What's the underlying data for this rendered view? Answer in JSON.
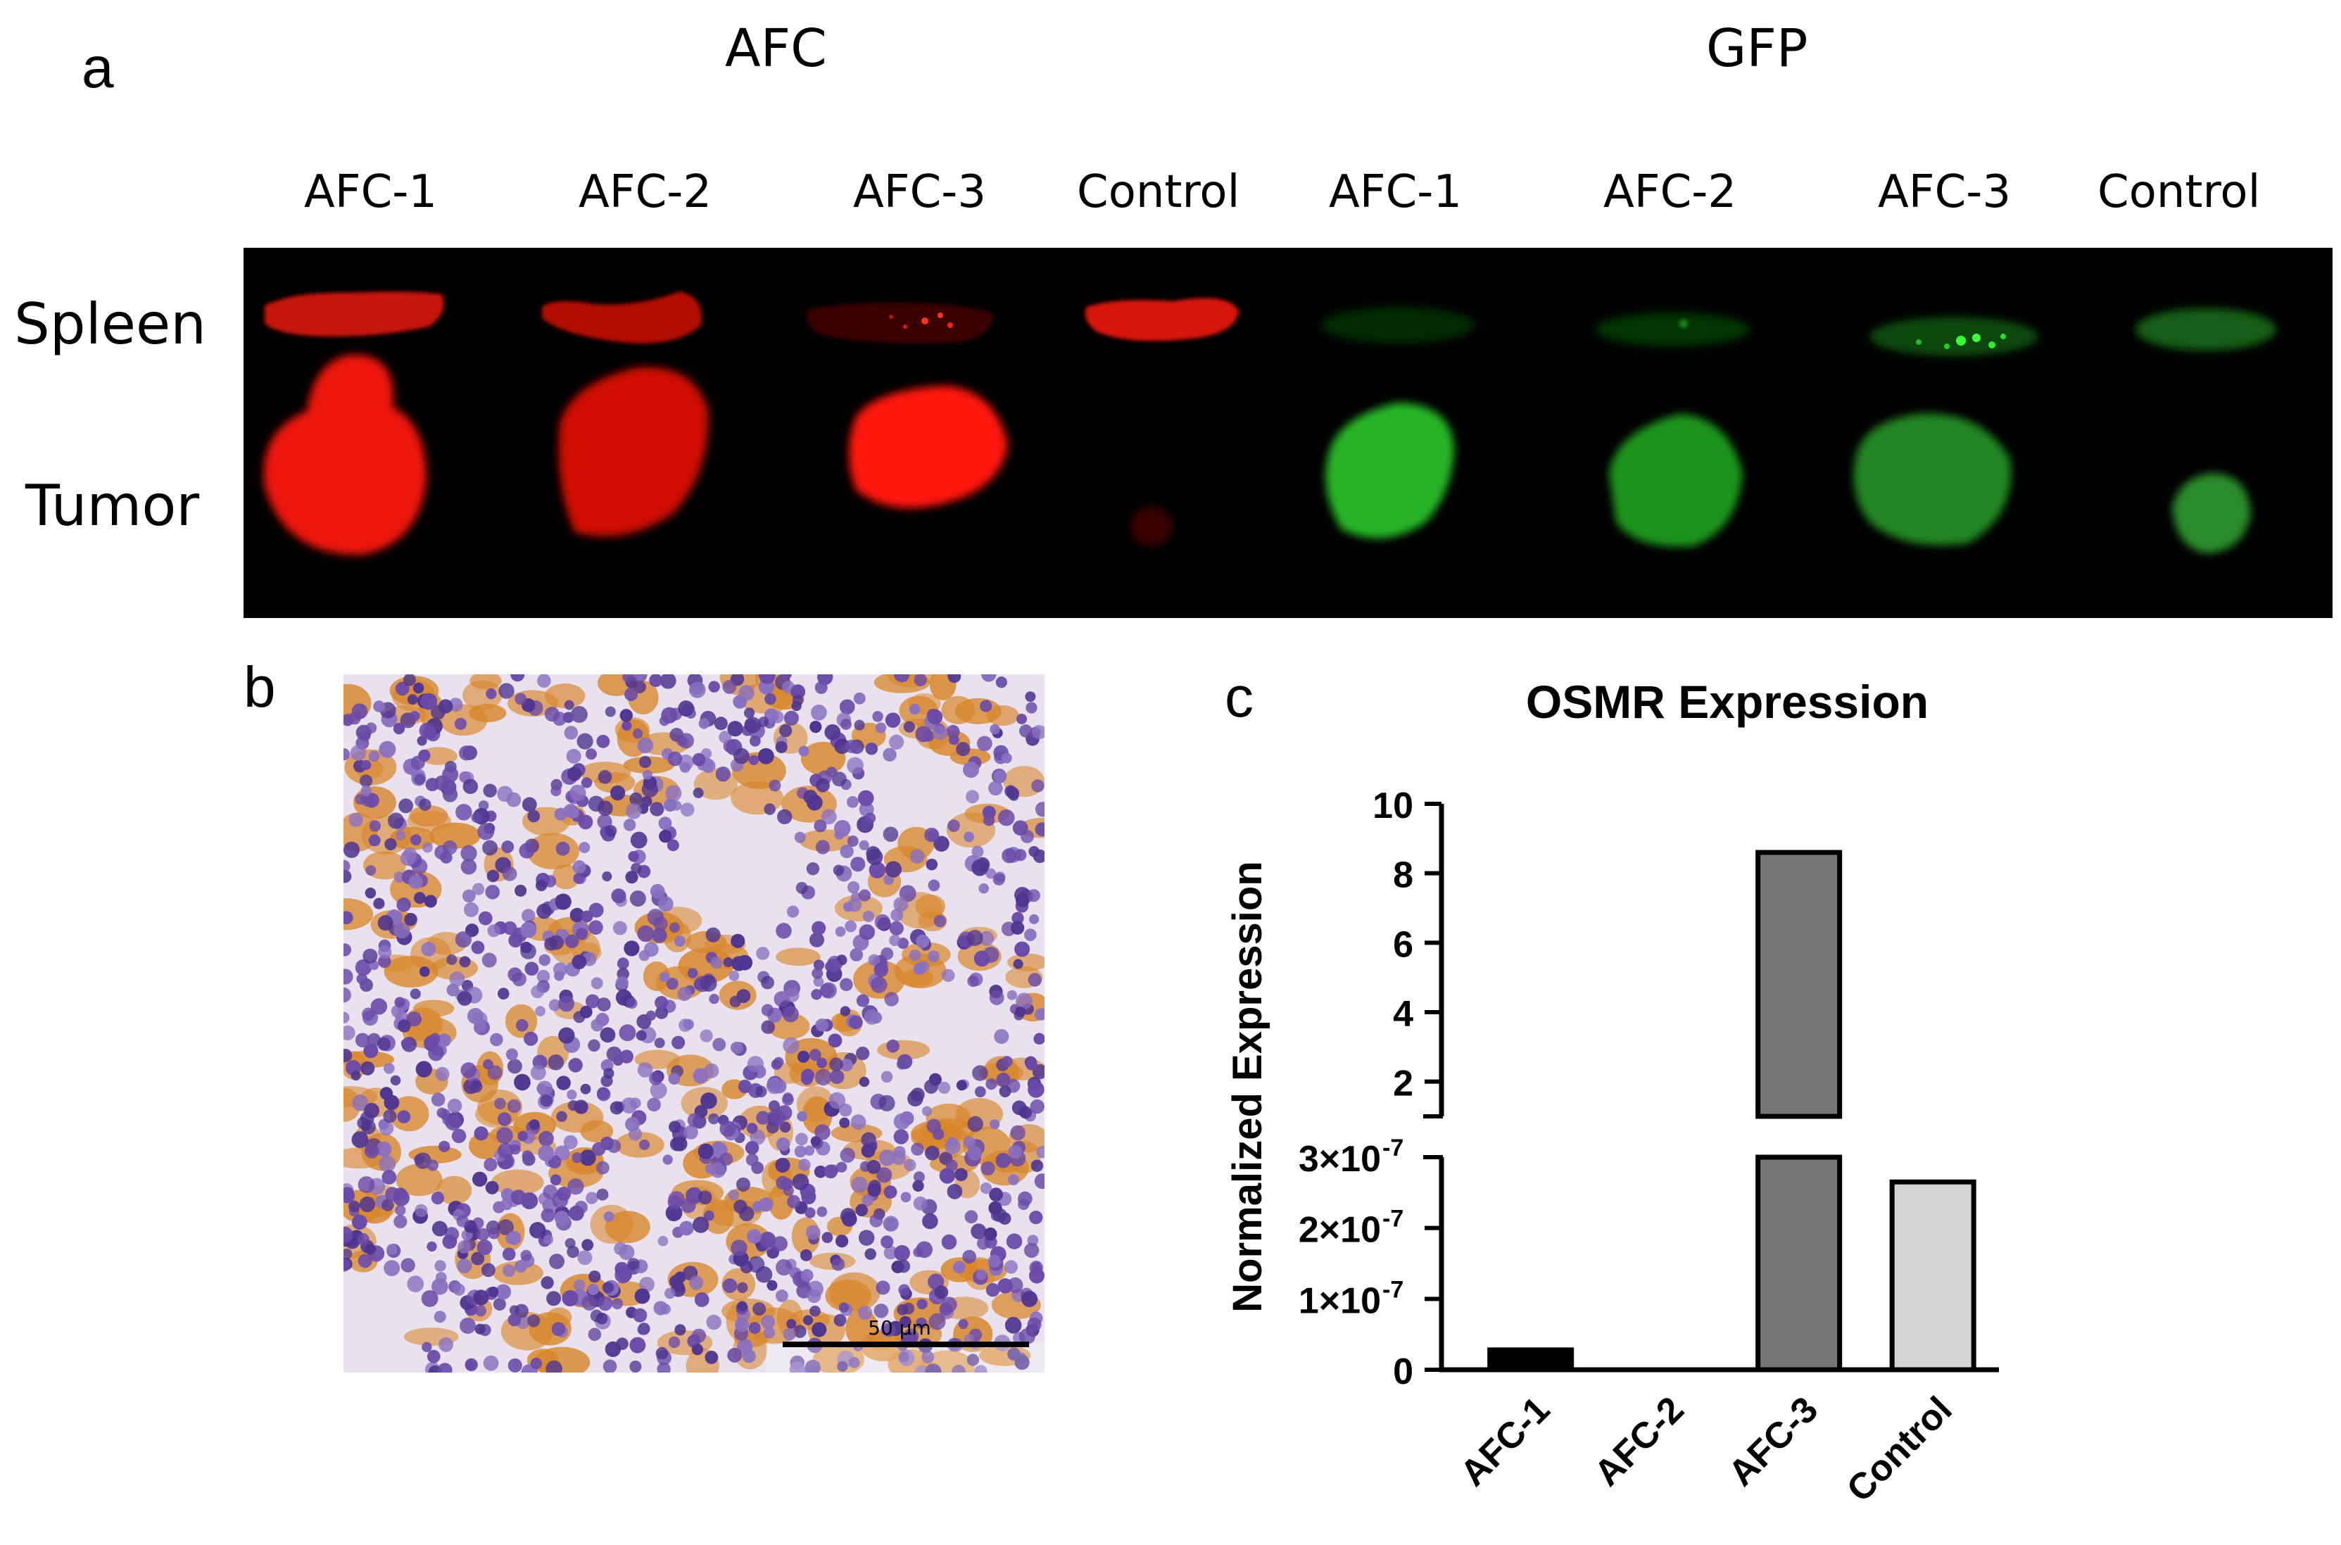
{
  "panel_a": {
    "letter": "a",
    "group_titles": [
      "AFC",
      "GFP"
    ],
    "column_labels": [
      "AFC-1",
      "AFC-2",
      "AFC-3",
      "Control",
      "AFC-1",
      "AFC-2",
      "AFC-3",
      "Control"
    ],
    "row_labels": [
      "Spleen",
      "Tumor"
    ],
    "colors": {
      "afc_channel": "#ff1a0a",
      "gfp_channel": "#22cc22",
      "background": "#000000"
    }
  },
  "panel_b": {
    "letter": "b",
    "scale_bar_label": "50 µm",
    "colors": {
      "nuclei": "#6a4aa8",
      "stain": "#d8862a",
      "background": "#e9e2ee"
    }
  },
  "panel_c": {
    "letter": "c",
    "chart_data": {
      "type": "bar",
      "title": "OSMR Expression",
      "ylabel": "Normalized Expression",
      "xlabel": "",
      "categories": [
        "AFC-1",
        "AFC-2",
        "AFC-3",
        "Control"
      ],
      "values": [
        2.8e-08,
        0,
        8.6,
        2.65e-07
      ],
      "bar_colors": [
        "#000000",
        "#ffffff",
        "#777777",
        "#d4d4d4"
      ],
      "broken_axis": true,
      "segments": [
        {
          "ylim": [
            0,
            3e-07
          ],
          "ticks": [
            0,
            1e-07,
            2e-07,
            3e-07
          ],
          "tick_labels": [
            "0",
            "1×10",
            "2×10",
            "3×10"
          ],
          "tick_exponents": [
            "",
            "-7",
            "-7",
            "-7"
          ]
        },
        {
          "ylim": [
            1.0,
            10
          ],
          "ticks": [
            2,
            4,
            6,
            8,
            10
          ],
          "tick_labels": [
            "2",
            "4",
            "6",
            "8",
            "10"
          ],
          "tick_exponents": [
            "",
            "",
            "",
            "",
            ""
          ]
        }
      ],
      "grid": false,
      "legend": "none"
    }
  }
}
